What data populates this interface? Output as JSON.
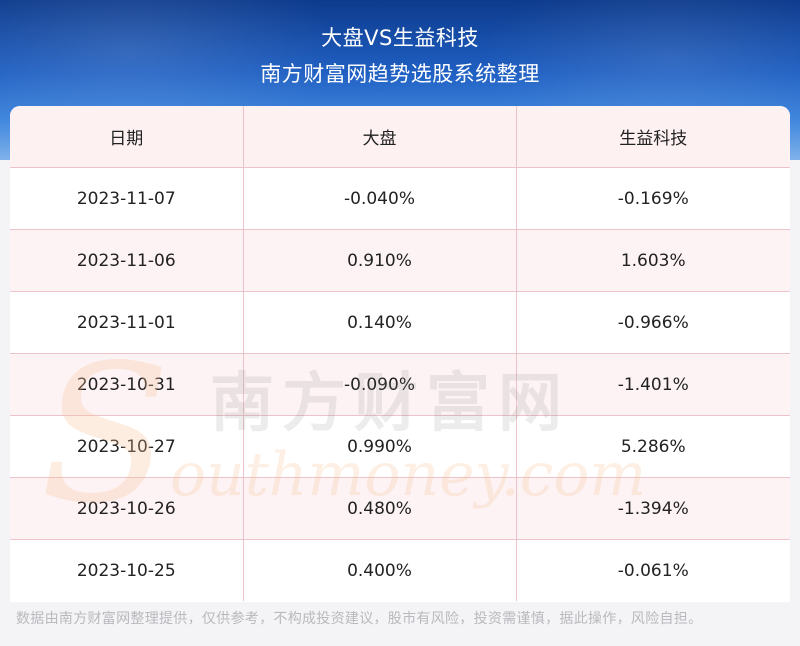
{
  "header": {
    "title": "大盘VS生益科技",
    "subtitle": "南方财富网趋势选股系统整理"
  },
  "table": {
    "columns": [
      "日期",
      "大盘",
      "生益科技"
    ],
    "rows": [
      [
        "2023-11-07",
        "-0.040%",
        "-0.169%"
      ],
      [
        "2023-11-06",
        "0.910%",
        "1.603%"
      ],
      [
        "2023-11-01",
        "0.140%",
        "-0.966%"
      ],
      [
        "2023-10-31",
        "-0.090%",
        "-1.401%"
      ],
      [
        "2023-10-27",
        "0.990%",
        "5.286%"
      ],
      [
        "2023-10-26",
        "0.480%",
        "-1.394%"
      ],
      [
        "2023-10-25",
        "0.400%",
        "-0.061%"
      ]
    ]
  },
  "watermark": {
    "cn": "南方财富网",
    "en": "outhmoney.com",
    "logo_letter": "S"
  },
  "footer": {
    "disclaimer": "数据由南方财富网整理提供，仅供参考，不构成投资建议，股市有风险，投资需谨慎，据此操作，风险自担。"
  }
}
